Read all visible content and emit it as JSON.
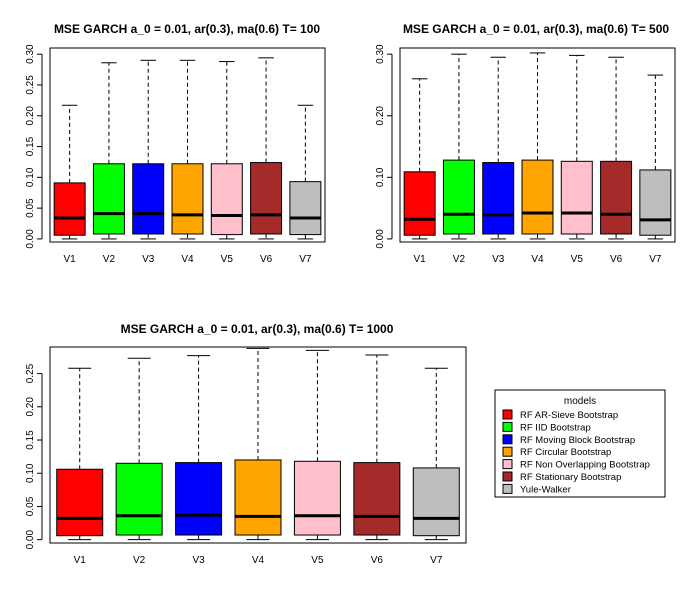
{
  "chart_data": [
    {
      "type": "box",
      "title": "MSE GARCH a_0 = 0.01, ar(0.3), ma(0.6)  T= 100",
      "categories": [
        "V1",
        "V2",
        "V3",
        "V4",
        "V5",
        "V6",
        "V7"
      ],
      "yticks": [
        0.0,
        0.05,
        0.1,
        0.15,
        0.2,
        0.25,
        0.3
      ],
      "ytick_labels": [
        "0.00",
        "0.05",
        "0.10",
        "0.15",
        "0.20",
        "0.25",
        "0.30"
      ],
      "ylim": [
        -0.005,
        0.31
      ],
      "boxes": [
        {
          "min": 0.0,
          "q1": 0.006,
          "median": 0.034,
          "q3": 0.091,
          "max": 0.217
        },
        {
          "min": 0.0,
          "q1": 0.008,
          "median": 0.041,
          "q3": 0.122,
          "max": 0.286
        },
        {
          "min": 0.0,
          "q1": 0.008,
          "median": 0.041,
          "q3": 0.122,
          "max": 0.29
        },
        {
          "min": 0.0,
          "q1": 0.008,
          "median": 0.039,
          "q3": 0.122,
          "max": 0.29
        },
        {
          "min": 0.0,
          "q1": 0.007,
          "median": 0.038,
          "q3": 0.122,
          "max": 0.288
        },
        {
          "min": 0.0,
          "q1": 0.008,
          "median": 0.039,
          "q3": 0.124,
          "max": 0.294
        },
        {
          "min": 0.0,
          "q1": 0.007,
          "median": 0.034,
          "q3": 0.093,
          "max": 0.217
        }
      ]
    },
    {
      "type": "box",
      "title": "MSE GARCH a_0 = 0.01, ar(0.3), ma(0.6)  T= 500",
      "categories": [
        "V1",
        "V2",
        "V3",
        "V4",
        "V5",
        "V6",
        "V7"
      ],
      "yticks": [
        0.0,
        0.1,
        0.2,
        0.3
      ],
      "ytick_labels": [
        "0.00",
        "0.10",
        "0.20",
        "0.30"
      ],
      "ylim": [
        -0.005,
        0.31
      ],
      "boxes": [
        {
          "min": 0.0,
          "q1": 0.006,
          "median": 0.032,
          "q3": 0.109,
          "max": 0.26
        },
        {
          "min": 0.0,
          "q1": 0.008,
          "median": 0.04,
          "q3": 0.128,
          "max": 0.3
        },
        {
          "min": 0.0,
          "q1": 0.008,
          "median": 0.039,
          "q3": 0.124,
          "max": 0.295
        },
        {
          "min": 0.0,
          "q1": 0.008,
          "median": 0.042,
          "q3": 0.128,
          "max": 0.302
        },
        {
          "min": 0.0,
          "q1": 0.008,
          "median": 0.042,
          "q3": 0.126,
          "max": 0.298
        },
        {
          "min": 0.0,
          "q1": 0.008,
          "median": 0.04,
          "q3": 0.126,
          "max": 0.295
        },
        {
          "min": 0.0,
          "q1": 0.006,
          "median": 0.031,
          "q3": 0.112,
          "max": 0.266
        }
      ]
    },
    {
      "type": "box",
      "title": "MSE GARCH a_0 = 0.01, ar(0.3), ma(0.6)  T= 1000",
      "categories": [
        "V1",
        "V2",
        "V3",
        "V4",
        "V5",
        "V6",
        "V7"
      ],
      "yticks": [
        0.0,
        0.05,
        0.1,
        0.15,
        0.2,
        0.25
      ],
      "ytick_labels": [
        "0.00",
        "0.05",
        "0.10",
        "0.15",
        "0.20",
        "0.25"
      ],
      "ylim": [
        -0.005,
        0.29
      ],
      "boxes": [
        {
          "min": 0.0,
          "q1": 0.006,
          "median": 0.032,
          "q3": 0.106,
          "max": 0.258
        },
        {
          "min": 0.0,
          "q1": 0.007,
          "median": 0.036,
          "q3": 0.115,
          "max": 0.273
        },
        {
          "min": 0.0,
          "q1": 0.007,
          "median": 0.037,
          "q3": 0.116,
          "max": 0.277
        },
        {
          "min": 0.0,
          "q1": 0.007,
          "median": 0.035,
          "q3": 0.12,
          "max": 0.288
        },
        {
          "min": 0.0,
          "q1": 0.007,
          "median": 0.036,
          "q3": 0.118,
          "max": 0.285
        },
        {
          "min": 0.0,
          "q1": 0.007,
          "median": 0.035,
          "q3": 0.116,
          "max": 0.278
        },
        {
          "min": 0.0,
          "q1": 0.006,
          "median": 0.032,
          "q3": 0.108,
          "max": 0.258
        }
      ]
    }
  ],
  "series_colors": [
    "#ff0000",
    "#00ff00",
    "#0000ff",
    "#ffa500",
    "#ffc0cb",
    "#a52a2a",
    "#bebebe"
  ],
  "legend": {
    "title": "models",
    "items": [
      "RF AR-Sieve Bootstrap",
      "RF IID Bootstrap",
      "RF Moving Block Bootstrap",
      "RF Circular Bootstrap",
      "RF Non Overlapping Bootstrap",
      "RF Stationary Bootstrap",
      "Yule-Walker"
    ]
  }
}
